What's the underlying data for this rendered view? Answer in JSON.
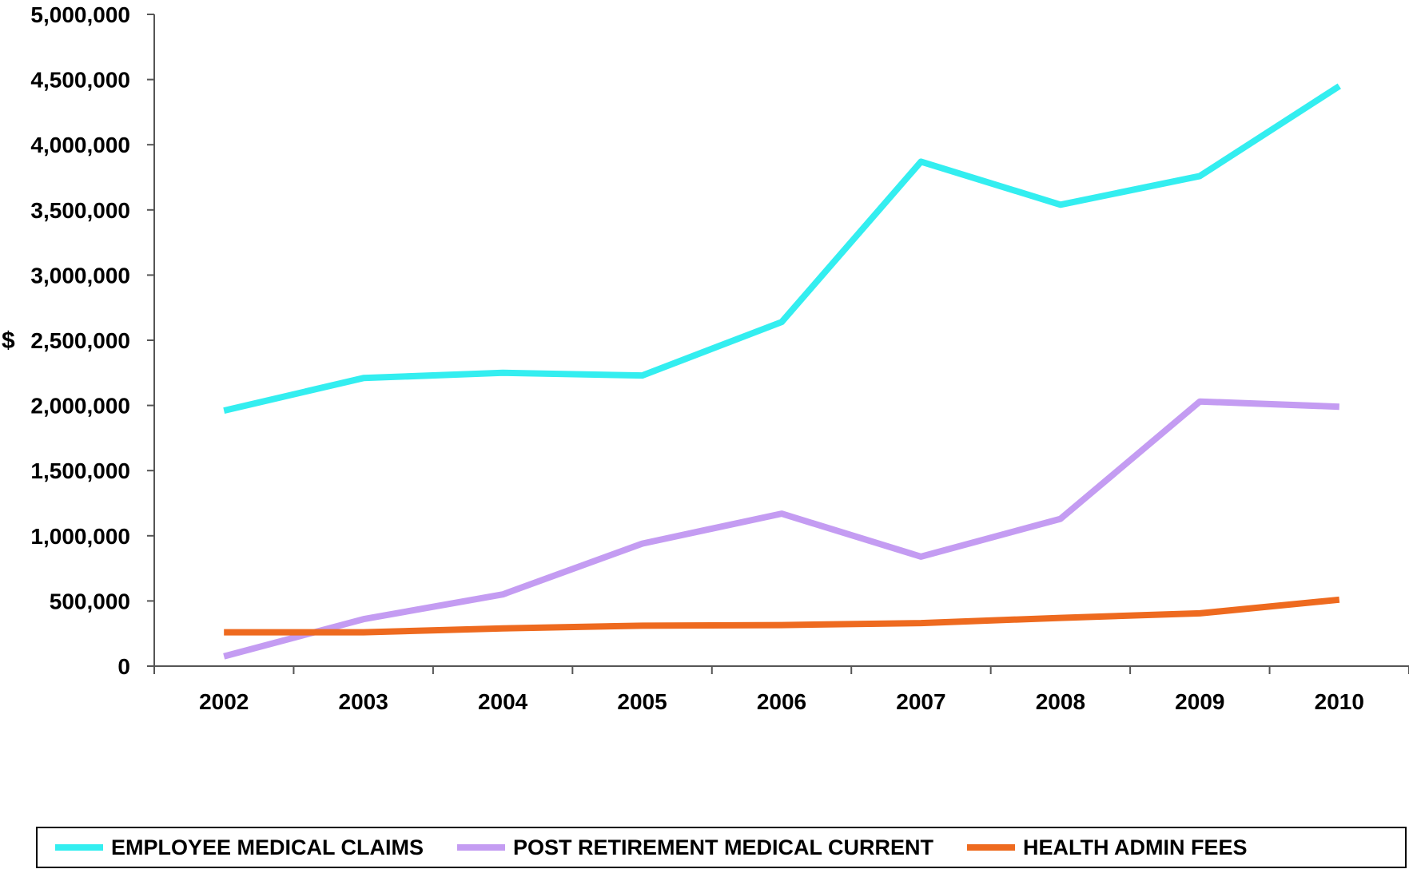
{
  "chart_data": {
    "type": "line",
    "title": "",
    "xlabel": "",
    "ylabel": "$",
    "x": [
      "2002",
      "2003",
      "2004",
      "2005",
      "2006",
      "2007",
      "2008",
      "2009",
      "2010"
    ],
    "ylim": [
      0,
      5000000
    ],
    "yticks": [
      0,
      500000,
      1000000,
      1500000,
      2000000,
      2500000,
      3000000,
      3500000,
      4000000,
      4500000,
      5000000
    ],
    "ytick_labels": [
      "0",
      "500,000",
      "1,000,000",
      "1,500,000",
      "2,000,000",
      "2,500,000",
      "3,000,000",
      "3,500,000",
      "4,000,000",
      "4,500,000",
      "5,000,000"
    ],
    "grid": false,
    "legend_position": "bottom",
    "series": [
      {
        "name": "EMPLOYEE MEDICAL CLAIMS",
        "color": "#33eef0",
        "values": [
          1960000,
          2210000,
          2250000,
          2230000,
          2640000,
          3870000,
          3540000,
          3760000,
          4450000
        ]
      },
      {
        "name": "POST RETIREMENT MEDICAL CURRENT",
        "color": "#c49cf2",
        "values": [
          75000,
          360000,
          550000,
          940000,
          1170000,
          840000,
          1130000,
          2030000,
          1990000
        ]
      },
      {
        "name": "HEALTH ADMIN FEES",
        "color": "#ee6a1f",
        "values": [
          260000,
          260000,
          290000,
          310000,
          315000,
          330000,
          370000,
          405000,
          510000
        ]
      }
    ]
  }
}
